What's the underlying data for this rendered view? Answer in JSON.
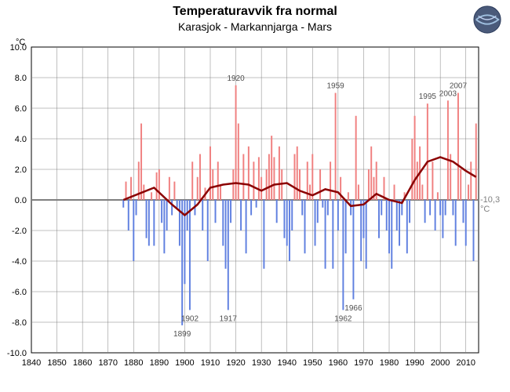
{
  "title": "Temperaturavvik fra normal",
  "subtitle": "Karasjok - Markannjarga - Mars",
  "y_unit": "°C",
  "reference_label": "-10,3 °C",
  "chart": {
    "type": "bar",
    "xlim": [
      1840,
      2015
    ],
    "ylim": [
      -10,
      10
    ],
    "xtick_step": 10,
    "ytick_step": 2,
    "background_color": "#ffffff",
    "grid_color": "#808080",
    "axis_color": "#000000",
    "zero_line_color": "#808080",
    "positive_bar_color": "#f08080",
    "negative_bar_color": "#6080e0",
    "trend_line_color": "#8b0000",
    "trend_line_width": 2.5,
    "bar_width": 0.6,
    "tick_fontsize": 11,
    "annotation_fontsize": 10,
    "annotation_color": "#505050",
    "annotations": [
      {
        "year": 1899,
        "value": -8.2,
        "label": "1899",
        "pos": "below"
      },
      {
        "year": 1902,
        "value": -7.2,
        "label": "1902",
        "pos": "below"
      },
      {
        "year": 1917,
        "value": -7.2,
        "label": "1917",
        "pos": "below"
      },
      {
        "year": 1920,
        "value": 7.5,
        "label": "1920",
        "pos": "above"
      },
      {
        "year": 1959,
        "value": 7.0,
        "label": "1959",
        "pos": "above"
      },
      {
        "year": 1962,
        "value": -7.2,
        "label": "1962",
        "pos": "below"
      },
      {
        "year": 1966,
        "value": -6.5,
        "label": "1966",
        "pos": "below"
      },
      {
        "year": 1995,
        "value": 6.3,
        "label": "1995",
        "pos": "above"
      },
      {
        "year": 2003,
        "value": 6.5,
        "label": "2003",
        "pos": "above"
      },
      {
        "year": 2007,
        "value": 7.0,
        "label": "2007",
        "pos": "above"
      }
    ],
    "data": [
      {
        "y": 1876,
        "v": -0.5
      },
      {
        "y": 1877,
        "v": 1.2
      },
      {
        "y": 1878,
        "v": -2.0
      },
      {
        "y": 1879,
        "v": 1.5
      },
      {
        "y": 1880,
        "v": -4.0
      },
      {
        "y": 1881,
        "v": -1.0
      },
      {
        "y": 1882,
        "v": 2.5
      },
      {
        "y": 1883,
        "v": 5.0
      },
      {
        "y": 1884,
        "v": 1.0
      },
      {
        "y": 1885,
        "v": -2.5
      },
      {
        "y": 1886,
        "v": -3.0
      },
      {
        "y": 1887,
        "v": 0.5
      },
      {
        "y": 1888,
        "v": -3.0
      },
      {
        "y": 1889,
        "v": 1.8
      },
      {
        "y": 1890,
        "v": 2.0
      },
      {
        "y": 1891,
        "v": -1.5
      },
      {
        "y": 1892,
        "v": -3.5
      },
      {
        "y": 1893,
        "v": -2.0
      },
      {
        "y": 1894,
        "v": 1.5
      },
      {
        "y": 1895,
        "v": -1.0
      },
      {
        "y": 1896,
        "v": 1.2
      },
      {
        "y": 1897,
        "v": -0.5
      },
      {
        "y": 1898,
        "v": -3.0
      },
      {
        "y": 1899,
        "v": -8.2
      },
      {
        "y": 1900,
        "v": -5.5
      },
      {
        "y": 1901,
        "v": -2.0
      },
      {
        "y": 1902,
        "v": -7.2
      },
      {
        "y": 1903,
        "v": 2.5
      },
      {
        "y": 1904,
        "v": -1.0
      },
      {
        "y": 1905,
        "v": 1.5
      },
      {
        "y": 1906,
        "v": 3.0
      },
      {
        "y": 1907,
        "v": -2.0
      },
      {
        "y": 1908,
        "v": 0.8
      },
      {
        "y": 1909,
        "v": -4.0
      },
      {
        "y": 1910,
        "v": 3.5
      },
      {
        "y": 1911,
        "v": 2.0
      },
      {
        "y": 1912,
        "v": -1.5
      },
      {
        "y": 1913,
        "v": 2.5
      },
      {
        "y": 1914,
        "v": 1.0
      },
      {
        "y": 1915,
        "v": -3.0
      },
      {
        "y": 1916,
        "v": -4.5
      },
      {
        "y": 1917,
        "v": -7.2
      },
      {
        "y": 1918,
        "v": -1.5
      },
      {
        "y": 1919,
        "v": 2.0
      },
      {
        "y": 1920,
        "v": 7.5
      },
      {
        "y": 1921,
        "v": 5.0
      },
      {
        "y": 1922,
        "v": -2.0
      },
      {
        "y": 1923,
        "v": 3.0
      },
      {
        "y": 1924,
        "v": -3.5
      },
      {
        "y": 1925,
        "v": 3.5
      },
      {
        "y": 1926,
        "v": -1.0
      },
      {
        "y": 1927,
        "v": 2.5
      },
      {
        "y": 1928,
        "v": -0.5
      },
      {
        "y": 1929,
        "v": 2.8
      },
      {
        "y": 1930,
        "v": 1.5
      },
      {
        "y": 1931,
        "v": -4.5
      },
      {
        "y": 1932,
        "v": 2.0
      },
      {
        "y": 1933,
        "v": 3.0
      },
      {
        "y": 1934,
        "v": 4.2
      },
      {
        "y": 1935,
        "v": 2.8
      },
      {
        "y": 1936,
        "v": -1.5
      },
      {
        "y": 1937,
        "v": 3.5
      },
      {
        "y": 1938,
        "v": 2.0
      },
      {
        "y": 1939,
        "v": -2.5
      },
      {
        "y": 1940,
        "v": -3.0
      },
      {
        "y": 1941,
        "v": -4.0
      },
      {
        "y": 1942,
        "v": -2.0
      },
      {
        "y": 1943,
        "v": 3.0
      },
      {
        "y": 1944,
        "v": 3.5
      },
      {
        "y": 1945,
        "v": 2.0
      },
      {
        "y": 1946,
        "v": -1.0
      },
      {
        "y": 1947,
        "v": -3.5
      },
      {
        "y": 1948,
        "v": 2.5
      },
      {
        "y": 1949,
        "v": 1.0
      },
      {
        "y": 1950,
        "v": 3.0
      },
      {
        "y": 1951,
        "v": -3.0
      },
      {
        "y": 1952,
        "v": -1.5
      },
      {
        "y": 1953,
        "v": 2.0
      },
      {
        "y": 1954,
        "v": -0.5
      },
      {
        "y": 1955,
        "v": -4.5
      },
      {
        "y": 1956,
        "v": -1.0
      },
      {
        "y": 1957,
        "v": 2.5
      },
      {
        "y": 1958,
        "v": -4.5
      },
      {
        "y": 1959,
        "v": 7.0
      },
      {
        "y": 1960,
        "v": -2.0
      },
      {
        "y": 1961,
        "v": 1.5
      },
      {
        "y": 1962,
        "v": -7.2
      },
      {
        "y": 1963,
        "v": -3.5
      },
      {
        "y": 1964,
        "v": 0.5
      },
      {
        "y": 1965,
        "v": -1.0
      },
      {
        "y": 1966,
        "v": -6.5
      },
      {
        "y": 1967,
        "v": 5.5
      },
      {
        "y": 1968,
        "v": 1.0
      },
      {
        "y": 1969,
        "v": -4.0
      },
      {
        "y": 1970,
        "v": -2.5
      },
      {
        "y": 1971,
        "v": -4.5
      },
      {
        "y": 1972,
        "v": 2.0
      },
      {
        "y": 1973,
        "v": 3.5
      },
      {
        "y": 1974,
        "v": 1.5
      },
      {
        "y": 1975,
        "v": 2.5
      },
      {
        "y": 1976,
        "v": -2.5
      },
      {
        "y": 1977,
        "v": -1.0
      },
      {
        "y": 1978,
        "v": 1.5
      },
      {
        "y": 1979,
        "v": -2.0
      },
      {
        "y": 1980,
        "v": -3.5
      },
      {
        "y": 1981,
        "v": -4.5
      },
      {
        "y": 1982,
        "v": 1.0
      },
      {
        "y": 1983,
        "v": -2.0
      },
      {
        "y": 1984,
        "v": -3.0
      },
      {
        "y": 1985,
        "v": -1.0
      },
      {
        "y": 1986,
        "v": 0.5
      },
      {
        "y": 1987,
        "v": -3.5
      },
      {
        "y": 1988,
        "v": -1.5
      },
      {
        "y": 1989,
        "v": 4.0
      },
      {
        "y": 1990,
        "v": 5.5
      },
      {
        "y": 1991,
        "v": 2.5
      },
      {
        "y": 1992,
        "v": 3.5
      },
      {
        "y": 1993,
        "v": 1.0
      },
      {
        "y": 1994,
        "v": -1.5
      },
      {
        "y": 1995,
        "v": 6.3
      },
      {
        "y": 1996,
        "v": -1.0
      },
      {
        "y": 1997,
        "v": 2.5
      },
      {
        "y": 1998,
        "v": -2.0
      },
      {
        "y": 1999,
        "v": 0.5
      },
      {
        "y": 2000,
        "v": -1.0
      },
      {
        "y": 2001,
        "v": -2.5
      },
      {
        "y": 2002,
        "v": -1.0
      },
      {
        "y": 2003,
        "v": 6.5
      },
      {
        "y": 2004,
        "v": 3.0
      },
      {
        "y": 2005,
        "v": -1.0
      },
      {
        "y": 2006,
        "v": -3.0
      },
      {
        "y": 2007,
        "v": 7.0
      },
      {
        "y": 2008,
        "v": 2.0
      },
      {
        "y": 2009,
        "v": -1.5
      },
      {
        "y": 2010,
        "v": -3.0
      },
      {
        "y": 2011,
        "v": 1.0
      },
      {
        "y": 2012,
        "v": 2.5
      },
      {
        "y": 2013,
        "v": -4.0
      },
      {
        "y": 2014,
        "v": 5.0
      }
    ],
    "trend": [
      {
        "y": 1876,
        "v": 0.0
      },
      {
        "y": 1882,
        "v": 0.4
      },
      {
        "y": 1888,
        "v": 0.8
      },
      {
        "y": 1895,
        "v": -0.3
      },
      {
        "y": 1900,
        "v": -1.0
      },
      {
        "y": 1905,
        "v": -0.3
      },
      {
        "y": 1910,
        "v": 0.8
      },
      {
        "y": 1915,
        "v": 1.0
      },
      {
        "y": 1920,
        "v": 1.1
      },
      {
        "y": 1925,
        "v": 1.0
      },
      {
        "y": 1930,
        "v": 0.6
      },
      {
        "y": 1935,
        "v": 1.0
      },
      {
        "y": 1940,
        "v": 1.1
      },
      {
        "y": 1945,
        "v": 0.6
      },
      {
        "y": 1950,
        "v": 0.3
      },
      {
        "y": 1955,
        "v": 0.7
      },
      {
        "y": 1960,
        "v": 0.5
      },
      {
        "y": 1965,
        "v": -0.4
      },
      {
        "y": 1970,
        "v": -0.3
      },
      {
        "y": 1975,
        "v": 0.4
      },
      {
        "y": 1980,
        "v": 0.0
      },
      {
        "y": 1985,
        "v": -0.2
      },
      {
        "y": 1990,
        "v": 1.3
      },
      {
        "y": 1995,
        "v": 2.5
      },
      {
        "y": 2000,
        "v": 2.8
      },
      {
        "y": 2005,
        "v": 2.5
      },
      {
        "y": 2010,
        "v": 1.9
      },
      {
        "y": 2014,
        "v": 1.5
      }
    ]
  }
}
